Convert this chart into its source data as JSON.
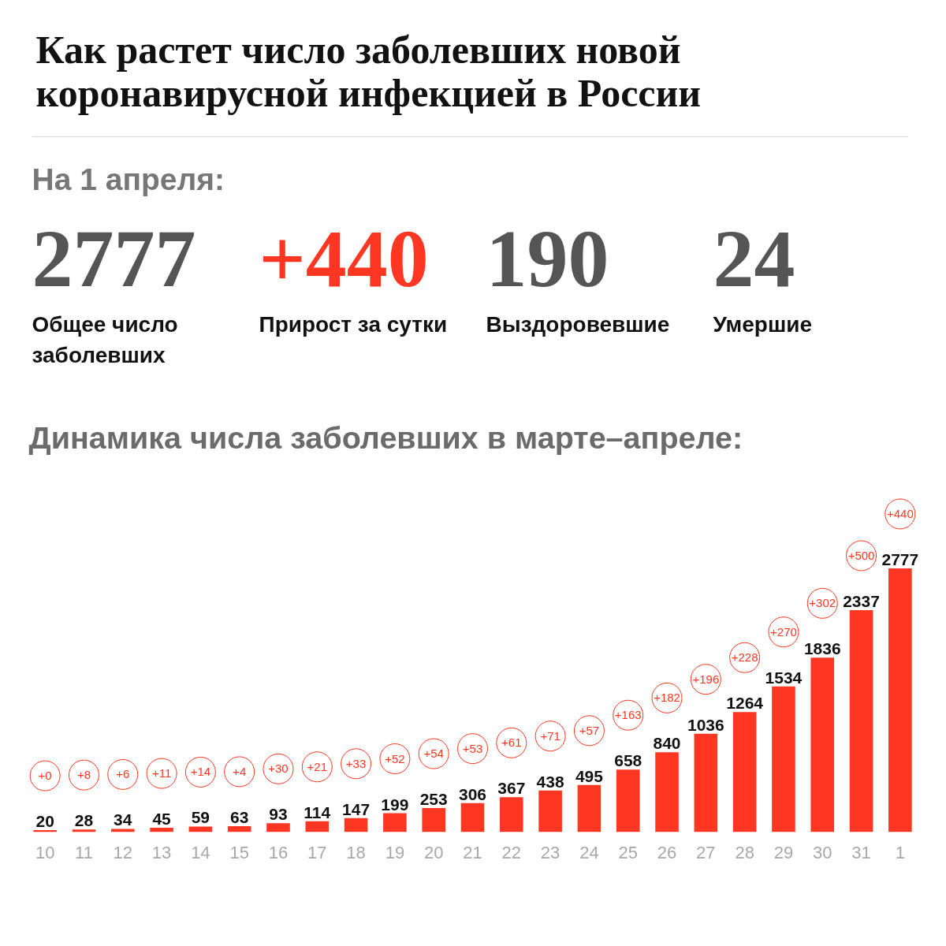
{
  "chart_data": [
    {
      "type": "other",
      "title": "Как растет число заболевших новой коронавирусной инфекцией в России",
      "subtitle": "На 1 апреля:",
      "categories": [
        "Общее число заболевших",
        "Прирост за сутки",
        "Выздоровевшие",
        "Умершие"
      ],
      "values": [
        2777,
        440,
        190,
        24
      ],
      "value_labels": [
        "2777",
        "+440",
        "190",
        "24"
      ],
      "colors": [
        "#555555",
        "#ff3621",
        "#555555",
        "#555555"
      ]
    },
    {
      "type": "bar",
      "title": "Динамика числа заболевших в марте–апреле:",
      "categories": [
        "10",
        "11",
        "12",
        "13",
        "14",
        "15",
        "16",
        "17",
        "18",
        "19",
        "20",
        "21",
        "22",
        "23",
        "24",
        "25",
        "26",
        "27",
        "28",
        "29",
        "30",
        "31",
        "1"
      ],
      "values": [
        20,
        28,
        34,
        45,
        59,
        63,
        93,
        114,
        147,
        199,
        253,
        306,
        367,
        438,
        495,
        658,
        840,
        1036,
        1264,
        1534,
        1836,
        2337,
        2777
      ],
      "color": "#ff3621",
      "data_labels": true,
      "tick_labels": "x",
      "annotations": [
        "+0",
        "+8",
        "+6",
        "+11",
        "+14",
        "+4",
        "+30",
        "+21",
        "+33",
        "+52",
        "+54",
        "+53",
        "+61",
        "+71",
        "+57",
        "+163",
        "+182",
        "+196",
        "+228",
        "+270",
        "+302",
        "+500",
        "+440"
      ]
    }
  ]
}
